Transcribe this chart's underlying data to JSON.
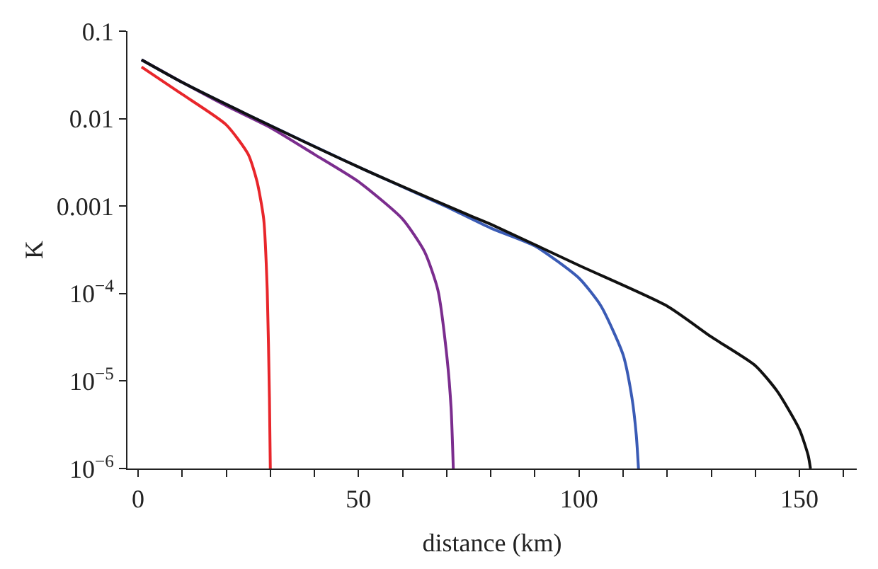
{
  "chart_data": {
    "type": "line",
    "xlabel": "distance (km)",
    "ylabel": "K",
    "log": "y",
    "marker": "none",
    "line_style": "solid",
    "xlim": [
      -2.4,
      163
    ],
    "ylim": [
      1e-06,
      0.1
    ],
    "xticks": [
      0,
      {
        "value": 10,
        "label": null
      },
      {
        "value": 20,
        "label": null
      },
      {
        "value": 30,
        "label": null
      },
      {
        "value": 40,
        "label": null
      },
      50,
      {
        "value": 60,
        "label": null
      },
      {
        "value": 70,
        "label": null
      },
      {
        "value": 80,
        "label": null
      },
      {
        "value": 90,
        "label": null
      },
      100,
      {
        "value": 110,
        "label": null
      },
      {
        "value": 120,
        "label": null
      },
      {
        "value": 130,
        "label": null
      },
      {
        "value": 140,
        "label": null
      },
      150,
      {
        "value": 160,
        "label": null
      }
    ],
    "yticks": [
      {
        "value": 1e-06,
        "label": "10$^{−6}$"
      },
      {
        "value": 1e-05,
        "label": "10$^{−5}$"
      },
      {
        "value": 0.0001,
        "label": "10$^{−4}$"
      },
      0.001,
      0.01,
      0.1
    ],
    "series": [
      {
        "color": "#e8262b",
        "x": [
          0.8,
          10,
          20,
          25,
          27,
          28.5,
          29.3,
          29.8,
          30
        ],
        "values": [
          0.039,
          0.019,
          0.0085,
          0.0039,
          0.0019,
          0.00071,
          0.00011,
          6.5e-06,
          1e-06
        ]
      },
      {
        "color": "#7b2d8e",
        "x": [
          0.8,
          10,
          20,
          30,
          40,
          50,
          60,
          65,
          68,
          70,
          71,
          71.5
        ],
        "values": [
          0.047,
          0.026,
          0.014,
          0.0079,
          0.0039,
          0.0019,
          0.00071,
          0.0003,
          0.00011,
          2e-05,
          4.9e-06,
          1e-06
        ]
      },
      {
        "color": "#3a5bb5",
        "x": [
          0.8,
          10,
          25,
          50,
          70,
          80,
          90,
          100,
          105,
          110,
          112,
          113,
          113.5
        ],
        "values": [
          0.047,
          0.026,
          0.011,
          0.0028,
          0.00098,
          0.00056,
          0.00035,
          0.00015,
          7.2e-05,
          2e-05,
          6.5e-06,
          2.4e-06,
          1e-06
        ]
      },
      {
        "color": "#111111",
        "x": [
          0.8,
          10,
          25,
          50,
          75,
          80,
          100,
          120,
          130,
          140,
          145,
          150,
          152,
          152.5
        ],
        "values": [
          0.047,
          0.026,
          0.011,
          0.0028,
          0.00079,
          0.00062,
          0.00021,
          7.2e-05,
          3.2e-05,
          1.5e-05,
          7.6e-06,
          2.8e-06,
          1.4e-06,
          1e-06
        ]
      }
    ]
  }
}
